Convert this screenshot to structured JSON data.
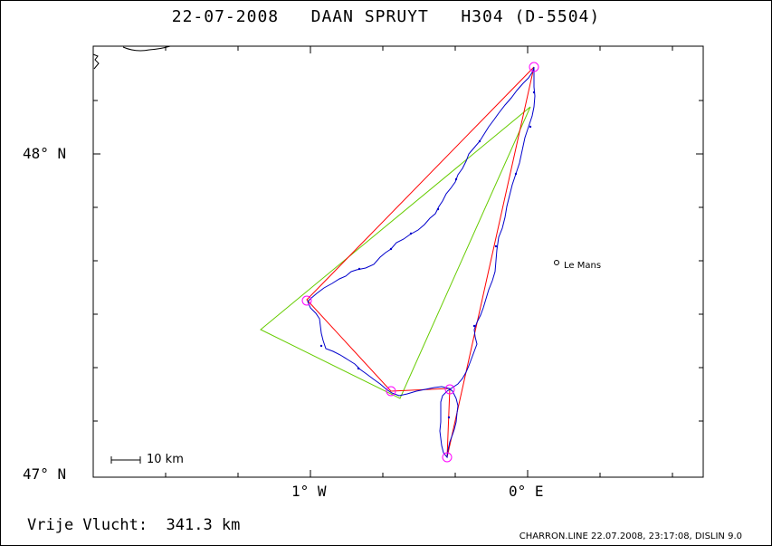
{
  "title": "22-07-2008   DAAN SPRUYT   H304 (D-5504)",
  "latitude_labels": [
    "48° N",
    "47° N"
  ],
  "longitude_labels": [
    "1° W",
    "0° E"
  ],
  "scale_bar_label": "10 km",
  "city_label": "Le Mans",
  "footer_left": "Vrije Vlucht:  341.3 km",
  "footer_right": "CHARRON.LINE 22.07.2008, 23:17:08, DISLIN 9.0",
  "colors": {
    "flight_track": "#0000cc",
    "task_route": "#ff0000",
    "fai_triangle": "#66cc00",
    "turnpoint_marker": "#ff00ff"
  }
}
